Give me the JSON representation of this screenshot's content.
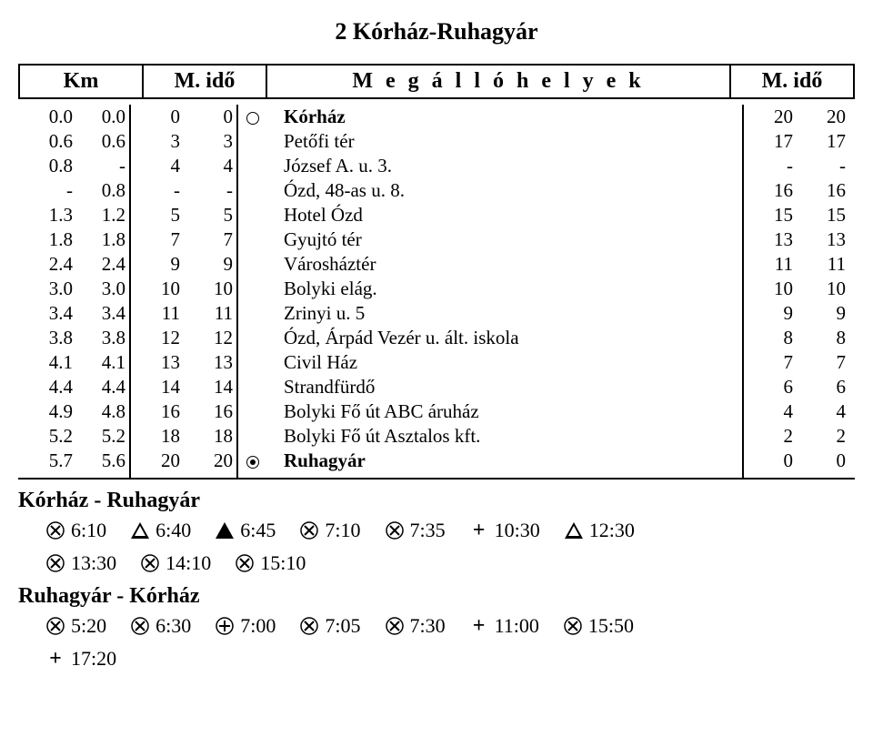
{
  "title": "2 Kórház-Ruhagyár",
  "headers": {
    "km": "Km",
    "mido_left": "M. idő",
    "stops": "M e g á l l ó h e l y e k",
    "mido_right": "M. idő"
  },
  "rows": [
    {
      "km1": "0.0",
      "km2": "0.0",
      "m1": "0",
      "m2": "0",
      "sym": "open",
      "stop": "Kórház",
      "m3": "20",
      "m4": "20"
    },
    {
      "km1": "0.6",
      "km2": "0.6",
      "m1": "3",
      "m2": "3",
      "sym": "",
      "stop": "Petőfi tér",
      "m3": "17",
      "m4": "17"
    },
    {
      "km1": "0.8",
      "km2": "-",
      "m1": "4",
      "m2": "4",
      "sym": "",
      "stop": "József A. u. 3.",
      "m3": "-",
      "m4": "-"
    },
    {
      "km1": "-",
      "km2": "0.8",
      "m1": "-",
      "m2": "-",
      "sym": "",
      "stop": "Ózd, 48-as u. 8.",
      "m3": "16",
      "m4": "16"
    },
    {
      "km1": "1.3",
      "km2": "1.2",
      "m1": "5",
      "m2": "5",
      "sym": "",
      "stop": "Hotel Ózd",
      "m3": "15",
      "m4": "15"
    },
    {
      "km1": "1.8",
      "km2": "1.8",
      "m1": "7",
      "m2": "7",
      "sym": "",
      "stop": "Gyujtó tér",
      "m3": "13",
      "m4": "13"
    },
    {
      "km1": "2.4",
      "km2": "2.4",
      "m1": "9",
      "m2": "9",
      "sym": "",
      "stop": "Városháztér",
      "m3": "11",
      "m4": "11"
    },
    {
      "km1": "3.0",
      "km2": "3.0",
      "m1": "10",
      "m2": "10",
      "sym": "",
      "stop": "Bolyki elág.",
      "m3": "10",
      "m4": "10"
    },
    {
      "km1": "3.4",
      "km2": "3.4",
      "m1": "11",
      "m2": "11",
      "sym": "",
      "stop": "Zrinyi u. 5",
      "m3": "9",
      "m4": "9"
    },
    {
      "km1": "3.8",
      "km2": "3.8",
      "m1": "12",
      "m2": "12",
      "sym": "",
      "stop": "Ózd, Árpád Vezér u. ált. iskola",
      "m3": "8",
      "m4": "8"
    },
    {
      "km1": "4.1",
      "km2": "4.1",
      "m1": "13",
      "m2": "13",
      "sym": "",
      "stop": "Civil Ház",
      "m3": "7",
      "m4": "7"
    },
    {
      "km1": "4.4",
      "km2": "4.4",
      "m1": "14",
      "m2": "14",
      "sym": "",
      "stop": "Strandfürdő",
      "m3": "6",
      "m4": "6"
    },
    {
      "km1": "4.9",
      "km2": "4.8",
      "m1": "16",
      "m2": "16",
      "sym": "",
      "stop": "Bolyki Fő út ABC áruház",
      "m3": "4",
      "m4": "4"
    },
    {
      "km1": "5.2",
      "km2": "5.2",
      "m1": "18",
      "m2": "18",
      "sym": "",
      "stop": "Bolyki Fő út Asztalos kft.",
      "m3": "2",
      "m4": "2"
    },
    {
      "km1": "5.7",
      "km2": "5.6",
      "m1": "20",
      "m2": "20",
      "sym": "dot",
      "stop": "Ruhagyár",
      "m3": "0",
      "m4": "0"
    }
  ],
  "section1_title": "Kórház - Ruhagyár",
  "section1_times": [
    [
      {
        "icon": "hammers",
        "t": "6:10"
      },
      {
        "icon": "open-tri",
        "t": "6:40"
      },
      {
        "icon": "solid-tri",
        "t": "6:45"
      },
      {
        "icon": "hammers",
        "t": "7:10"
      },
      {
        "icon": "hammers",
        "t": "7:35"
      },
      {
        "icon": "plus",
        "t": "10:30"
      },
      {
        "icon": "open-tri",
        "t": "12:30"
      }
    ],
    [
      {
        "icon": "hammers",
        "t": "13:30"
      },
      {
        "icon": "hammers",
        "t": "14:10"
      },
      {
        "icon": "hammers",
        "t": "15:10"
      }
    ]
  ],
  "section2_title": "Ruhagyár - Kórház",
  "section2_times": [
    [
      {
        "icon": "hammers",
        "t": "5:20"
      },
      {
        "icon": "hammers",
        "t": "6:30"
      },
      {
        "icon": "circle-plus",
        "t": "7:00"
      },
      {
        "icon": "hammers",
        "t": "7:05"
      },
      {
        "icon": "hammers",
        "t": "7:30"
      },
      {
        "icon": "plus",
        "t": "11:00"
      },
      {
        "icon": "hammers",
        "t": "15:50"
      }
    ],
    [
      {
        "icon": "plus",
        "t": "17:20"
      }
    ]
  ]
}
